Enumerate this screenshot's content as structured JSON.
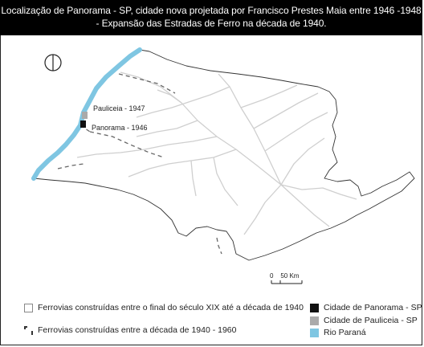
{
  "title": {
    "line1": "Localização de Panorama - SP, cidade nova projetada por Francisco Prestes Maia entre 1946 -1948",
    "line2": "- Expansão das Estradas de Ferro  na década de 1940."
  },
  "map": {
    "labels": {
      "pauliceia": "Pauliceia - 1947",
      "panorama": "Panorama - 1946"
    },
    "scale_label": "0    50 Km",
    "north_arrow": "north-arrow-icon"
  },
  "legend": {
    "railways_old": "Ferrovias construídas entre o final do século XIX até a década de 1940",
    "railways_new": "Ferrovias construídas entre a década de 1940 - 1960",
    "panorama": "Cidade de Panorama - SP",
    "pauliceia": "Cidade de Pauliceia - SP",
    "parana": "Rio Paraná"
  },
  "colors": {
    "river": "#7fc6e2",
    "railway_old": "#cfcfcf",
    "railway_new": "#666666",
    "panorama": "#111111",
    "pauliceia": "#aaaaaa",
    "outline": "#333333"
  }
}
